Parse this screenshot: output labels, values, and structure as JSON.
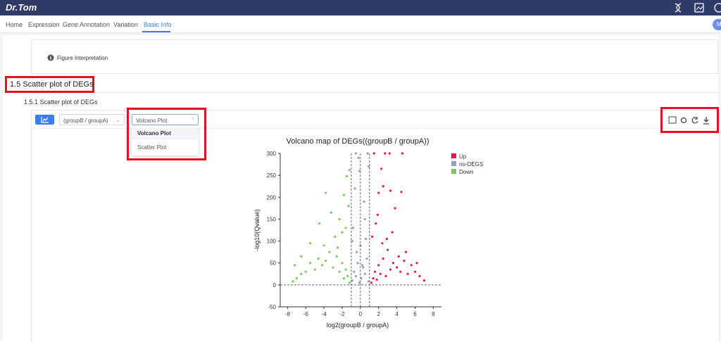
{
  "header": {
    "logo": "Dr.Tom",
    "avatar": "M"
  },
  "nav": [
    "Home",
    "Expression",
    "Gene Annotation",
    "Variation",
    "Basic Info"
  ],
  "interpretation": "Figure Interpretation",
  "section_title": "1.5 Scatter plot of DEGs",
  "subsection_title": "1.5.1 Scatter plot of DEGs",
  "toolbar": {
    "group_select": "(groupB / groupA)",
    "plot_select": "Volcano Plot",
    "options": [
      "Volcano Plot",
      "Scatter Plot"
    ]
  },
  "chart_data": {
    "type": "scatter",
    "title": "Volcano map of DEGs((groupB / groupA))",
    "x_label": "log2(groupB / groupA)",
    "y_label": "-log10(Qvalue)",
    "xlim": [
      -8.8,
      8.9
    ],
    "xticks": [
      -8,
      -6,
      -4,
      -2,
      0,
      2,
      4,
      6,
      8
    ],
    "ylim": [
      -50,
      300
    ],
    "yticks": [
      -50,
      0,
      50,
      100,
      150,
      200,
      250,
      300
    ],
    "threshold_x": [
      -1,
      0,
      1
    ],
    "threshold_y": [
      0
    ],
    "legend": "top-right",
    "series": [
      {
        "name": "Up",
        "color": "#e8174b",
        "x": [
          1.2,
          1.4,
          1.6,
          1.8,
          2.0,
          2.2,
          2.5,
          2.8,
          3.0,
          3.3,
          3.6,
          4.0,
          4.4,
          4.8,
          5.2,
          5.6,
          6.0,
          6.5,
          7.0,
          1.5,
          2.7,
          3.2,
          4.6,
          4.5,
          2.3,
          2.5,
          3.3,
          3.8,
          2.0,
          1.3,
          1.7,
          2.4,
          3.5,
          5.0,
          6.2,
          1.9,
          2.9,
          4.2
        ],
        "values": [
          5,
          15,
          30,
          12,
          45,
          25,
          60,
          20,
          80,
          35,
          50,
          40,
          30,
          55,
          25,
          45,
          30,
          20,
          10,
          300,
          300,
          300,
          300,
          212,
          265,
          225,
          215,
          175,
          210,
          110,
          140,
          95,
          120,
          75,
          50,
          160,
          105,
          65
        ]
      },
      {
        "name": "no-DEGS",
        "color": "#8ea2bf",
        "x": [
          -0.9,
          -0.7,
          -0.5,
          -0.3,
          -0.1,
          0.1,
          0.3,
          0.5,
          0.7,
          0.9,
          -0.5,
          0.8,
          -0.2,
          0.9,
          -0.6,
          0.5,
          0.0,
          -0.8,
          0.6,
          -0.4,
          0.2,
          -0.9,
          0.4,
          -0.1
        ],
        "values": [
          10,
          30,
          20,
          50,
          5,
          15,
          40,
          25,
          60,
          8,
          300,
          300,
          290,
          270,
          220,
          150,
          90,
          130,
          105,
          75,
          45,
          100,
          190,
          260
        ]
      },
      {
        "name": "Down",
        "color": "#76c95b",
        "x": [
          -1.2,
          -1.4,
          -1.6,
          -1.8,
          -2.0,
          -2.3,
          -2.6,
          -3.0,
          -3.4,
          -3.8,
          -4.2,
          -4.6,
          -5.0,
          -5.5,
          -6.0,
          -6.5,
          -7.0,
          -7.4,
          -1.8,
          -1.5,
          -1.2,
          -3.8,
          -4.5,
          -3.2,
          -2.3,
          -5.5,
          -6.5,
          -7.2,
          -1.3,
          -2.0,
          -2.8,
          -4.0,
          -1.6,
          -2.5
        ],
        "values": [
          5,
          20,
          35,
          15,
          50,
          30,
          65,
          40,
          75,
          55,
          45,
          60,
          35,
          50,
          30,
          25,
          15,
          8,
          205,
          248,
          262,
          210,
          140,
          165,
          150,
          95,
          65,
          45,
          180,
          120,
          110,
          90,
          130,
          85
        ]
      }
    ]
  }
}
